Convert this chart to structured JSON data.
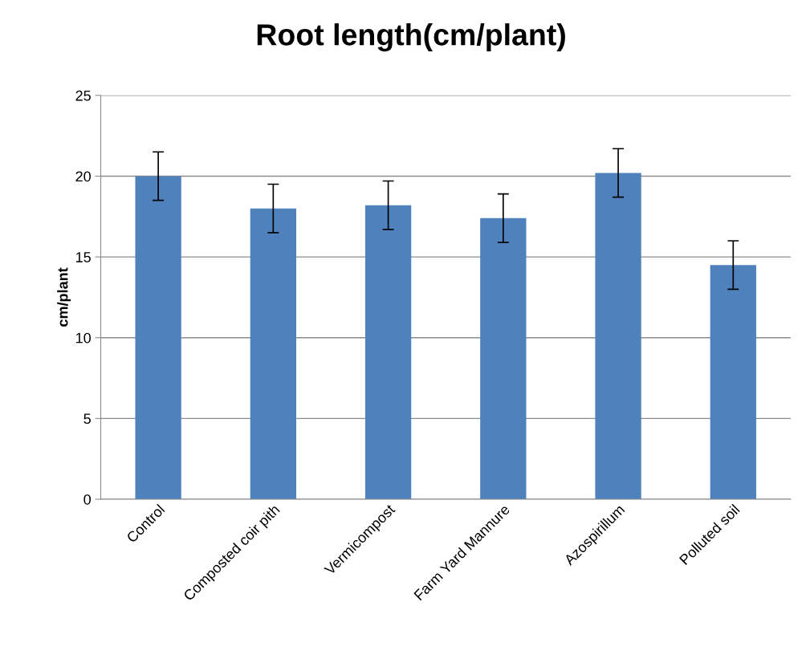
{
  "chart_data": {
    "type": "bar",
    "title": "Root length(cm/plant)",
    "ylabel": "cm/plant",
    "categories": [
      "Control",
      "Composted coir pith",
      "Vermicompost",
      "Farm Yard Mannure",
      "Azospirillum",
      "Polluted soil"
    ],
    "values": [
      20.0,
      18.0,
      18.2,
      17.4,
      20.2,
      14.5
    ],
    "errors": [
      1.5,
      1.5,
      1.5,
      1.5,
      1.5,
      1.5
    ],
    "color": "#4f81bd",
    "ylim": [
      0,
      25
    ],
    "yticks": [
      0,
      5,
      10,
      15,
      20,
      25
    ],
    "grid": "y"
  }
}
